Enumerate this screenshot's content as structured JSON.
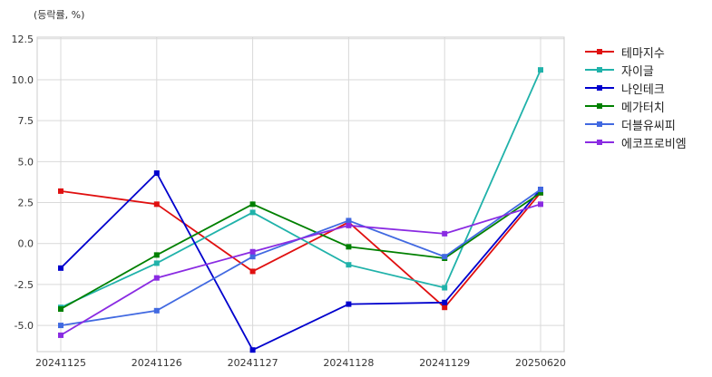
{
  "chart_data": {
    "type": "line",
    "unit_label": "(등락률, %)",
    "x": [
      "20241125",
      "20241126",
      "20241127",
      "20241128",
      "20241129",
      "20250620"
    ],
    "ylim": [
      -6.6,
      12.6
    ],
    "yticks": [
      -5.0,
      -2.5,
      0.0,
      2.5,
      5.0,
      7.5,
      10.0,
      12.5
    ],
    "ytick_labels": [
      "-5.0",
      "-2.5",
      "0.0",
      "2.5",
      "5.0",
      "7.5",
      "10.0",
      "12.5"
    ],
    "grid": true,
    "legend_position": "outside-right",
    "series": [
      {
        "name": "테마지수",
        "color": "#e01010",
        "values": [
          3.2,
          2.4,
          -1.7,
          1.3,
          -3.9,
          3.1
        ]
      },
      {
        "name": "자이글",
        "color": "#20b2aa",
        "values": [
          -3.9,
          -1.2,
          1.9,
          -1.3,
          -2.7,
          10.6
        ]
      },
      {
        "name": "나인테크",
        "color": "#0000cd",
        "values": [
          -1.5,
          4.3,
          -6.5,
          -3.7,
          -3.6,
          3.3
        ]
      },
      {
        "name": "메가터치",
        "color": "#008000",
        "values": [
          -4.0,
          -0.7,
          2.4,
          -0.2,
          -0.9,
          3.1
        ]
      },
      {
        "name": "더블유씨피",
        "color": "#4169e1",
        "values": [
          -5.0,
          -4.1,
          -0.8,
          1.4,
          -0.8,
          3.3
        ]
      },
      {
        "name": "에코프로비엠",
        "color": "#8a2be2",
        "values": [
          -5.6,
          -2.1,
          -0.5,
          1.1,
          0.6,
          2.4
        ]
      }
    ]
  }
}
